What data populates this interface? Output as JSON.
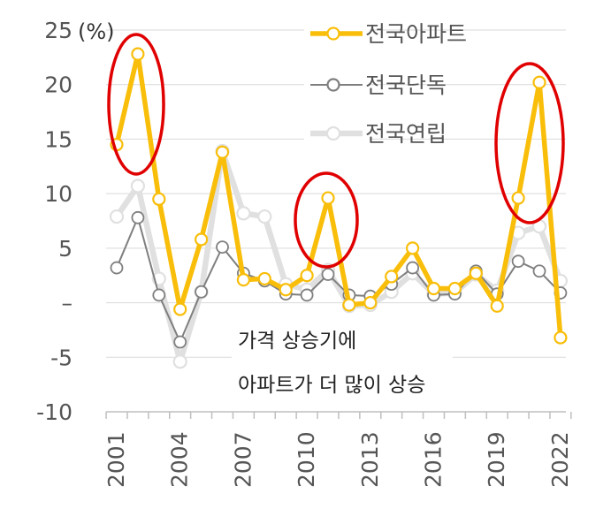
{
  "chart_data": {
    "type": "line",
    "unit_label": "(%)",
    "x": [
      2001,
      2002,
      2003,
      2004,
      2005,
      2006,
      2007,
      2008,
      2009,
      2010,
      2011,
      2012,
      2013,
      2014,
      2015,
      2016,
      2017,
      2018,
      2019,
      2020,
      2021,
      2022
    ],
    "xticks": [
      "2001",
      "2004",
      "2007",
      "2010",
      "2013",
      "2016",
      "2019",
      "2022"
    ],
    "yticks": [
      "25",
      "20",
      "15",
      "10",
      "5",
      "–",
      "-5",
      "-10"
    ],
    "ylim": [
      -10,
      25
    ],
    "series": [
      {
        "name": "전국연립",
        "color": "#e0e0e0",
        "values": [
          7.9,
          10.7,
          2.2,
          -5.4,
          1.0,
          13.9,
          8.2,
          7.9,
          1.7,
          1.2,
          3.0,
          -0.3,
          -0.2,
          1.0,
          2.7,
          0.8,
          0.9,
          2.6,
          1.1,
          6.4,
          7.0,
          2.0
        ]
      },
      {
        "name": "전국단독",
        "color": "#7f7f7f",
        "values": [
          3.2,
          7.8,
          0.7,
          -3.6,
          1.0,
          5.1,
          2.7,
          2.0,
          0.8,
          0.7,
          2.6,
          0.7,
          0.6,
          1.7,
          3.2,
          0.7,
          0.8,
          2.9,
          0.8,
          3.8,
          2.9,
          0.9
        ]
      },
      {
        "name": "전국아파트",
        "color": "#f9be0a",
        "values": [
          14.5,
          22.8,
          9.5,
          -0.6,
          5.8,
          13.8,
          2.1,
          2.2,
          1.2,
          2.5,
          9.6,
          -0.2,
          0.0,
          2.4,
          5.0,
          1.3,
          1.3,
          2.7,
          -0.3,
          9.6,
          20.2,
          -3.2
        ]
      }
    ],
    "annotations": [
      "가격 상승기에",
      "아파트가 더 많이 상승"
    ]
  }
}
